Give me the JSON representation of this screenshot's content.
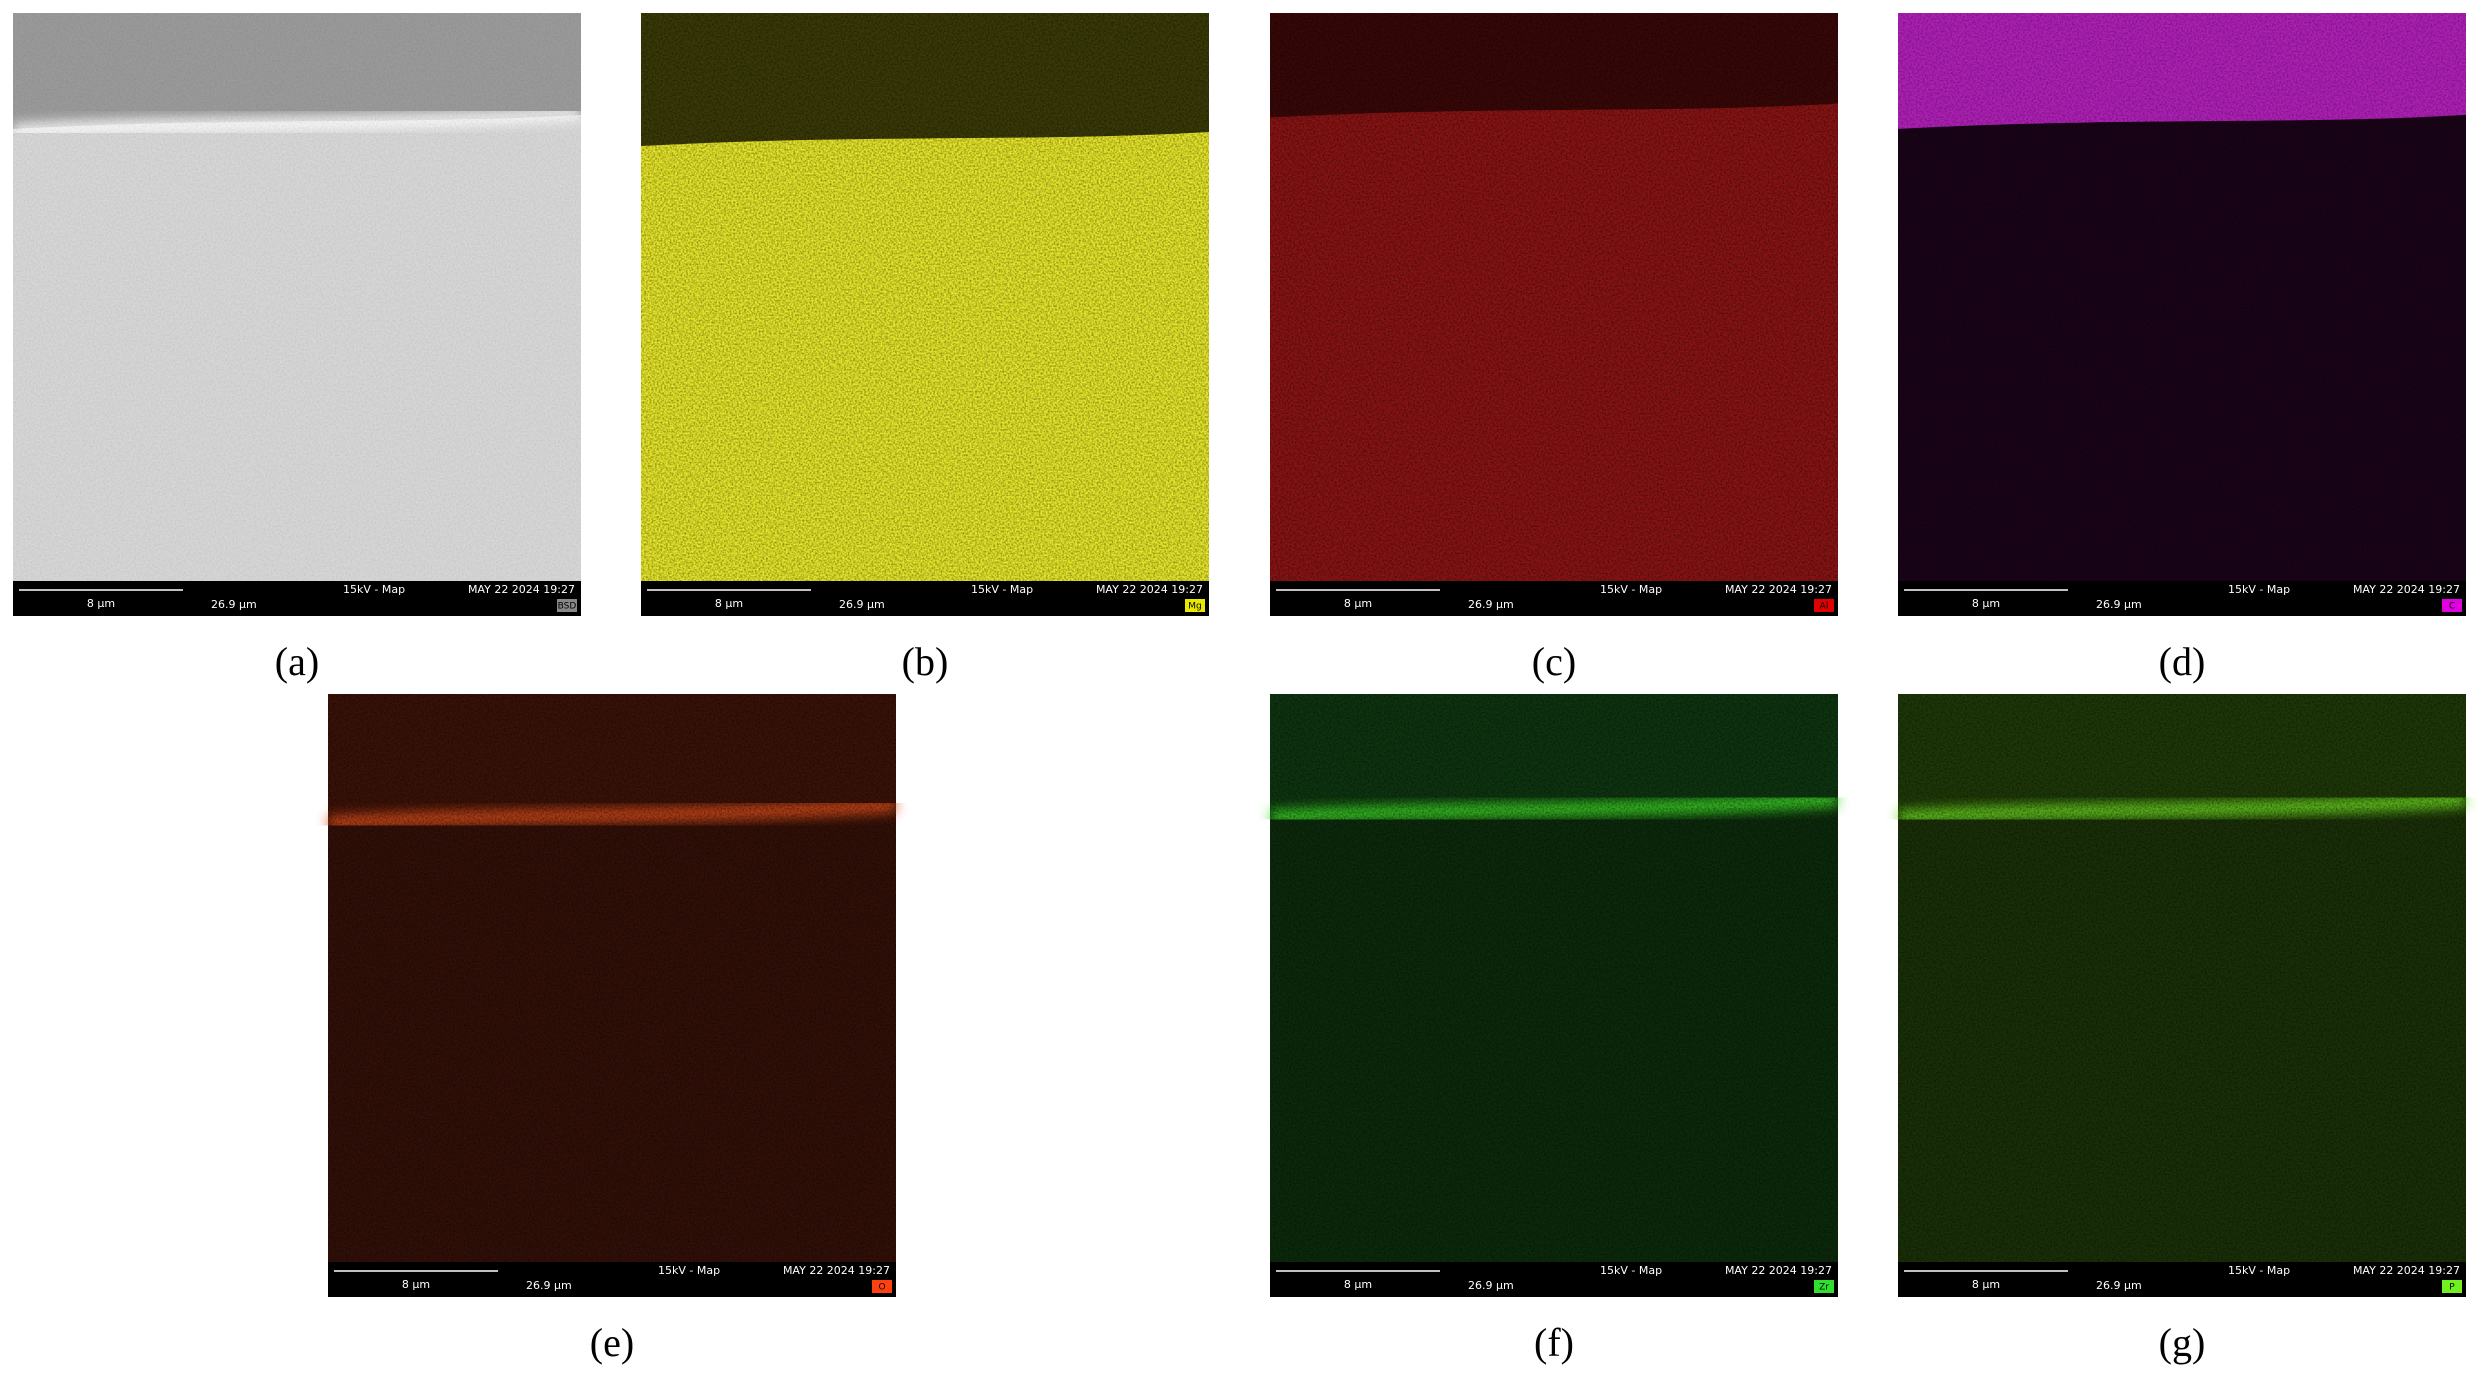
{
  "panels": [
    {
      "label": "(a)",
      "tag": "BSD",
      "scale": "8 µm",
      "field": "26.9 µm",
      "mode": "15kV - Map",
      "date": "MAY 22 2024 19:27"
    },
    {
      "label": "(b)",
      "tag": "Mg",
      "scale": "8 µm",
      "field": "26.9 µm",
      "mode": "15kV - Map",
      "date": "MAY 22 2024 19:27"
    },
    {
      "label": "(c)",
      "tag": "Al",
      "scale": "8 µm",
      "field": "26.9 µm",
      "mode": "15kV - Map",
      "date": "MAY 22 2024 19:27"
    },
    {
      "label": "(d)",
      "tag": "C",
      "scale": "8 µm",
      "field": "26.9 µm",
      "mode": "15kV - Map",
      "date": "MAY 22 2024 19:27"
    },
    {
      "label": "(e)",
      "tag": "O",
      "scale": "8 µm",
      "field": "26.9 µm",
      "mode": "15kV - Map",
      "date": "MAY 22 2024 19:27"
    },
    {
      "label": "(f)",
      "tag": "Zr",
      "scale": "8 µm",
      "field": "26.9 µm",
      "mode": "15kV - Map",
      "date": "MAY 22 2024 19:27"
    },
    {
      "label": "(g)",
      "tag": "P",
      "scale": "8 µm",
      "field": "26.9 µm",
      "mode": "15kV - Map",
      "date": "MAY 22 2024 19:27"
    }
  ]
}
